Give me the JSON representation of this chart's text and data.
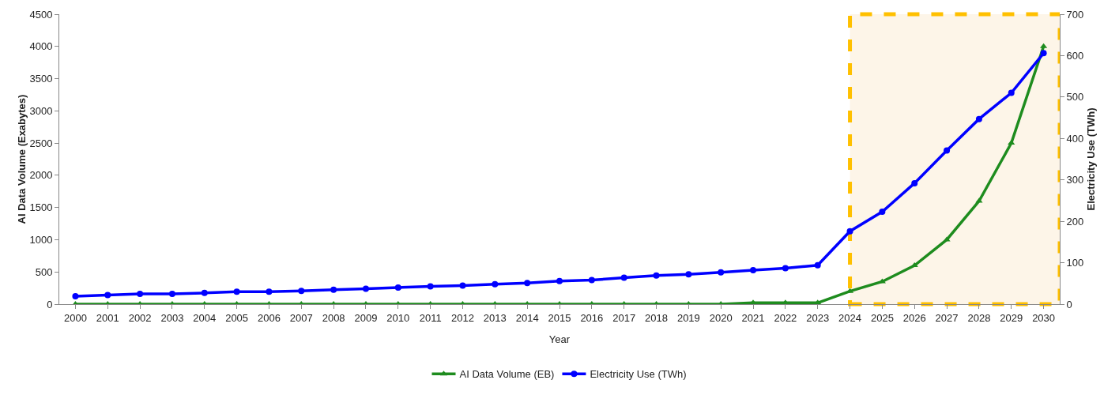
{
  "chart_data": {
    "type": "line",
    "x": [
      2000,
      2001,
      2002,
      2003,
      2004,
      2005,
      2006,
      2007,
      2008,
      2009,
      2010,
      2011,
      2012,
      2013,
      2014,
      2015,
      2016,
      2017,
      2018,
      2019,
      2020,
      2021,
      2022,
      2023,
      2024,
      2025,
      2026,
      2027,
      2028,
      2029,
      2030
    ],
    "series": [
      {
        "name": "AI Data Volume (EB)",
        "color": "#1e8c1e",
        "marker": "triangle",
        "values": [
          0,
          0,
          0,
          0,
          0,
          0,
          0,
          0,
          0,
          0,
          0,
          0,
          0,
          0,
          0,
          0,
          0,
          0,
          0,
          0,
          0,
          20,
          20,
          20,
          200,
          350,
          600,
          1000,
          1600,
          2500,
          4000
        ]
      },
      {
        "name": "Electricity Use (TWh)",
        "color": "#0000ff",
        "marker": "circle",
        "axis": "y2",
        "values": [
          19,
          22,
          25,
          25,
          27,
          30,
          30,
          32,
          35,
          37,
          40,
          43,
          45,
          48,
          51,
          56,
          58,
          64,
          69,
          72,
          77,
          82,
          87,
          94,
          176,
          223,
          292,
          371,
          447,
          510,
          606
        ]
      }
    ],
    "xlabel": "Year",
    "ylabel": "AI Data Volume (Exabytes)",
    "y2label": "Electricity Use (TWh)",
    "xlim": [
      1999.5,
      2030.5
    ],
    "xticks": [
      2000,
      2001,
      2002,
      2003,
      2004,
      2005,
      2006,
      2007,
      2008,
      2009,
      2010,
      2011,
      2012,
      2013,
      2014,
      2015,
      2016,
      2017,
      2018,
      2019,
      2020,
      2021,
      2022,
      2023,
      2024,
      2025,
      2026,
      2027,
      2028,
      2029,
      2030
    ],
    "ylim": [
      0,
      4500
    ],
    "yticks": [
      0,
      500,
      1000,
      1500,
      2000,
      2500,
      3000,
      3500,
      4000,
      4500
    ],
    "y2lim": [
      0,
      700
    ],
    "y2ticks": [
      0,
      100,
      200,
      300,
      400,
      500,
      600,
      700
    ],
    "bands": [
      {
        "axis": "x",
        "from": 2024,
        "to": 2030.5,
        "color": "#fdf5e8"
      }
    ],
    "grid": false,
    "legend": "bottom"
  }
}
